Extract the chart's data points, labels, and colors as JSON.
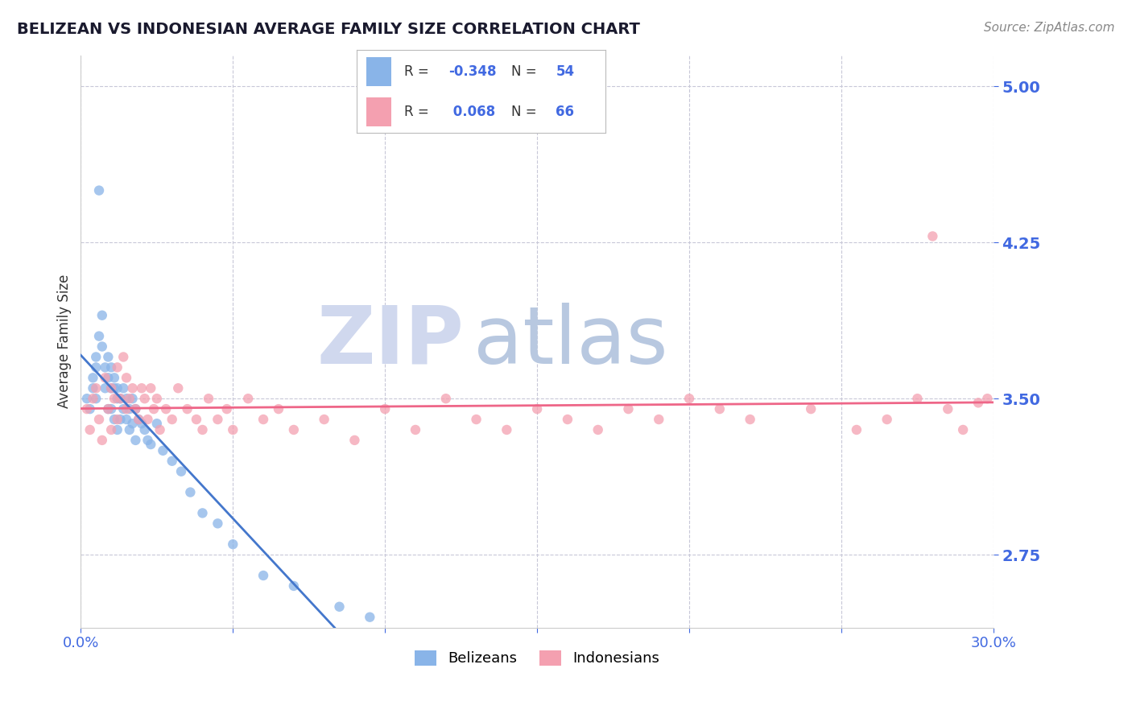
{
  "title": "BELIZEAN VS INDONESIAN AVERAGE FAMILY SIZE CORRELATION CHART",
  "source_text": "Source: ZipAtlas.com",
  "ylabel": "Average Family Size",
  "xmin": 0.0,
  "xmax": 0.3,
  "ymin": 2.4,
  "ymax": 5.15,
  "yticks": [
    2.75,
    3.5,
    4.25,
    5.0
  ],
  "xticks": [
    0.0,
    0.05,
    0.1,
    0.15,
    0.2,
    0.25,
    0.3
  ],
  "xtick_labels": [
    "0.0%",
    "",
    "",
    "",
    "",
    "",
    "30.0%"
  ],
  "tick_color": "#4169e1",
  "grid_color": "#c8c8d8",
  "background_color": "#ffffff",
  "watermark_zip": "ZIP",
  "watermark_atlas": "atlas",
  "watermark_color_zip": "#d0d8ee",
  "watermark_color_atlas": "#b8c8e0",
  "legend_r1_val": "-0.348",
  "legend_n1": "54",
  "legend_r2_val": " 0.068",
  "legend_n2": "66",
  "legend_label1": "Belizeans",
  "legend_label2": "Indonesians",
  "color_belizean": "#89b4e8",
  "color_indonesian": "#f4a0b0",
  "line_color_belizean": "#4477cc",
  "line_color_indonesian": "#ee6688",
  "belizean_x": [
    0.002,
    0.003,
    0.004,
    0.004,
    0.005,
    0.005,
    0.005,
    0.006,
    0.006,
    0.007,
    0.007,
    0.008,
    0.008,
    0.009,
    0.009,
    0.009,
    0.01,
    0.01,
    0.01,
    0.011,
    0.011,
    0.011,
    0.012,
    0.012,
    0.012,
    0.013,
    0.013,
    0.014,
    0.014,
    0.015,
    0.015,
    0.016,
    0.016,
    0.017,
    0.017,
    0.018,
    0.018,
    0.019,
    0.02,
    0.021,
    0.022,
    0.023,
    0.025,
    0.027,
    0.03,
    0.033,
    0.036,
    0.04,
    0.045,
    0.05,
    0.06,
    0.07,
    0.085,
    0.095
  ],
  "belizean_y": [
    3.5,
    3.45,
    3.55,
    3.6,
    3.7,
    3.65,
    3.5,
    3.8,
    4.5,
    3.9,
    3.75,
    3.65,
    3.55,
    3.7,
    3.6,
    3.45,
    3.65,
    3.55,
    3.45,
    3.6,
    3.55,
    3.4,
    3.55,
    3.5,
    3.35,
    3.5,
    3.4,
    3.55,
    3.45,
    3.5,
    3.4,
    3.45,
    3.35,
    3.5,
    3.38,
    3.45,
    3.3,
    3.4,
    3.38,
    3.35,
    3.3,
    3.28,
    3.38,
    3.25,
    3.2,
    3.15,
    3.05,
    2.95,
    2.9,
    2.8,
    2.65,
    2.6,
    2.5,
    2.45
  ],
  "indonesian_x": [
    0.002,
    0.003,
    0.004,
    0.005,
    0.006,
    0.007,
    0.008,
    0.009,
    0.01,
    0.01,
    0.011,
    0.012,
    0.012,
    0.013,
    0.014,
    0.015,
    0.015,
    0.016,
    0.017,
    0.018,
    0.019,
    0.02,
    0.021,
    0.022,
    0.023,
    0.024,
    0.025,
    0.026,
    0.028,
    0.03,
    0.032,
    0.035,
    0.038,
    0.04,
    0.042,
    0.045,
    0.048,
    0.05,
    0.055,
    0.06,
    0.065,
    0.07,
    0.08,
    0.09,
    0.1,
    0.11,
    0.12,
    0.13,
    0.14,
    0.15,
    0.16,
    0.17,
    0.18,
    0.19,
    0.2,
    0.21,
    0.22,
    0.24,
    0.255,
    0.265,
    0.275,
    0.28,
    0.285,
    0.29,
    0.295,
    0.298
  ],
  "indonesian_y": [
    3.45,
    3.35,
    3.5,
    3.55,
    3.4,
    3.3,
    3.6,
    3.45,
    3.55,
    3.35,
    3.5,
    3.65,
    3.4,
    3.5,
    3.7,
    3.45,
    3.6,
    3.5,
    3.55,
    3.45,
    3.4,
    3.55,
    3.5,
    3.4,
    3.55,
    3.45,
    3.5,
    3.35,
    3.45,
    3.4,
    3.55,
    3.45,
    3.4,
    3.35,
    3.5,
    3.4,
    3.45,
    3.35,
    3.5,
    3.4,
    3.45,
    3.35,
    3.4,
    3.3,
    3.45,
    3.35,
    3.5,
    3.4,
    3.35,
    3.45,
    3.4,
    3.35,
    3.45,
    3.4,
    3.5,
    3.45,
    3.4,
    3.45,
    3.35,
    3.4,
    3.5,
    4.28,
    3.45,
    3.35,
    3.48,
    3.5
  ]
}
